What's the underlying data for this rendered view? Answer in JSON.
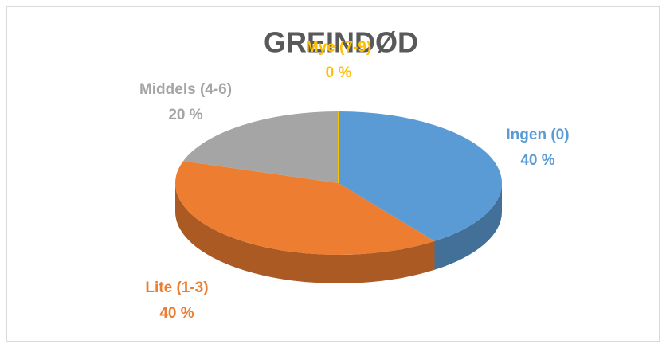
{
  "chart_data": {
    "type": "pie",
    "title": "GREINDØD",
    "categories": [
      "Ingen (0)",
      "Lite (1-3)",
      "Middels (4-6)",
      "Mye (7-9)"
    ],
    "values": [
      40,
      40,
      20,
      0
    ],
    "value_labels": [
      "40 %",
      "40 %",
      "20 %",
      "0 %"
    ],
    "colors": [
      "#5b9bd5",
      "#ed7d31",
      "#a5a5a5",
      "#ffc000"
    ]
  }
}
